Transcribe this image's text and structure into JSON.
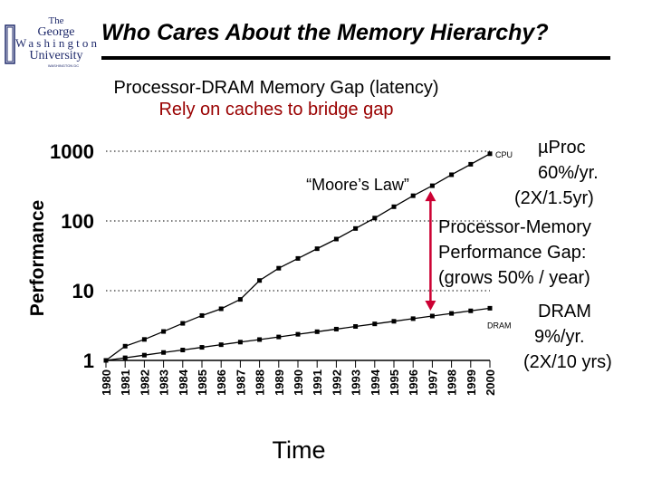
{
  "slide": {
    "title": "Who Cares About the Memory Hierarchy?",
    "subtitle": "Processor-DRAM Memory Gap (latency)",
    "subtitle2": "Rely on caches to bridge gap",
    "accent_color": "#990000"
  },
  "logo": {
    "lines": [
      "The",
      "George",
      "Washington",
      "University",
      "WASHINGTON DC"
    ],
    "color": "#1f2a6b"
  },
  "annotations": {
    "cpu_line1": "µProc",
    "cpu_line2": "60%/yr.",
    "cpu_line3": "(2X/1.5yr)",
    "gap_line1": "Processor-Memory",
    "gap_line2": "Performance Gap:",
    "gap_line3": "(grows 50% / year)",
    "dram_line1": "DRAM",
    "dram_line2": "9%/yr.",
    "dram_line3": "(2X/10 yrs)",
    "moores_law": "“Moore’s Law”",
    "gap_arrow_color": "#cc0033"
  },
  "chart_data": {
    "type": "line",
    "title": "",
    "xlabel": "Time",
    "ylabel": "Performance",
    "y_scale": "log",
    "ylim": [
      1,
      1000
    ],
    "y_ticks": [
      1,
      10,
      100,
      1000
    ],
    "y_tick_labels": [
      "1",
      "10",
      "100",
      "1000"
    ],
    "gridlines": [
      10,
      100,
      1000
    ],
    "grid_style": "dotted",
    "x": [
      "1980",
      "1981",
      "1982",
      "1983",
      "1984",
      "1985",
      "1986",
      "1987",
      "1988",
      "1989",
      "1990",
      "1991",
      "1992",
      "1993",
      "1994",
      "1995",
      "1996",
      "1997",
      "1998",
      "1999",
      "2000"
    ],
    "series": [
      {
        "name": "CPU",
        "color": "#000000",
        "values": [
          1,
          1.6,
          2,
          2.6,
          3.4,
          4.4,
          5.5,
          7.5,
          14,
          21,
          29,
          40,
          55,
          78,
          110,
          160,
          230,
          320,
          460,
          650,
          920
        ]
      },
      {
        "name": "DRAM",
        "color": "#000000",
        "values": [
          1,
          1.09,
          1.19,
          1.3,
          1.41,
          1.54,
          1.68,
          1.83,
          1.99,
          2.17,
          2.37,
          2.58,
          2.81,
          3.07,
          3.34,
          3.64,
          3.97,
          4.33,
          4.72,
          5.14,
          5.6
        ]
      }
    ],
    "gap_arrow_year": "1997"
  }
}
